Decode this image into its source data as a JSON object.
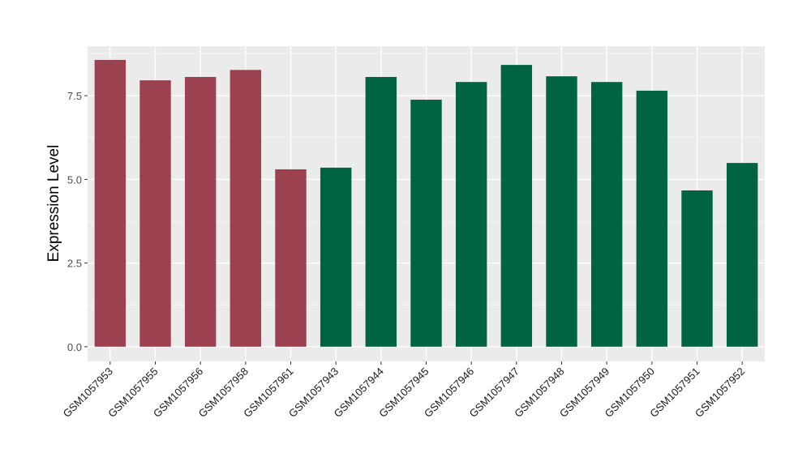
{
  "chart_data": {
    "type": "bar",
    "title": "",
    "xlabel": "",
    "ylabel": "Expression Level",
    "ylim": [
      -0.44,
      8.98
    ],
    "yticks": [
      0,
      2.5,
      5,
      7.5
    ],
    "ytick_labels": [
      "0.0",
      "2.5",
      "5.0",
      "7.5"
    ],
    "grid": true,
    "categories": [
      "GSM1057953",
      "GSM1057955",
      "GSM1057956",
      "GSM1057958",
      "GSM1057961",
      "GSM1057943",
      "GSM1057944",
      "GSM1057945",
      "GSM1057946",
      "GSM1057947",
      "GSM1057948",
      "GSM1057949",
      "GSM1057950",
      "GSM1057951",
      "GSM1057952"
    ],
    "values": [
      8.57,
      7.96,
      8.06,
      8.27,
      5.3,
      5.35,
      8.06,
      7.38,
      7.91,
      8.42,
      8.08,
      7.91,
      7.65,
      4.67,
      5.49
    ],
    "groups": [
      0,
      0,
      0,
      0,
      0,
      1,
      1,
      1,
      1,
      1,
      1,
      1,
      1,
      1,
      1
    ],
    "colors": [
      "#9b4150",
      "#006443"
    ]
  }
}
